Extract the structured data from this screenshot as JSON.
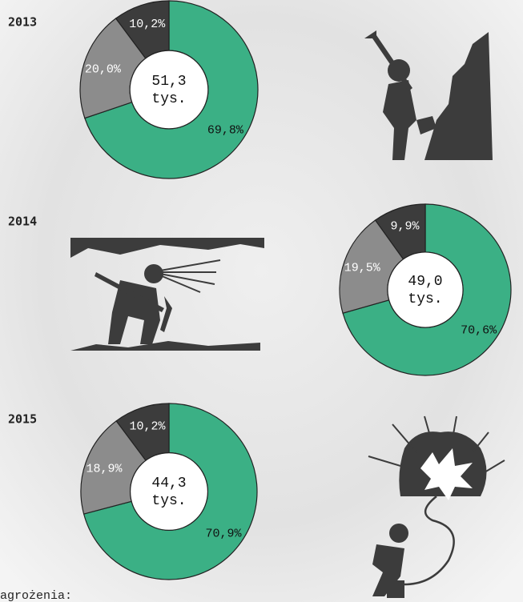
{
  "chart_data": [
    {
      "type": "pie",
      "title": "2013",
      "values": [
        69.8,
        20.0,
        10.2
      ],
      "value_labels": [
        "69,8%",
        "20,0%",
        "10,2%"
      ],
      "colors": [
        "#3bb085",
        "#8c8c8c",
        "#3c3c3c"
      ],
      "center_text": [
        "51,3",
        "tys."
      ]
    },
    {
      "type": "pie",
      "title": "2014",
      "values": [
        70.6,
        19.5,
        9.9
      ],
      "value_labels": [
        "70,6%",
        "19,5%",
        "9,9%"
      ],
      "colors": [
        "#3bb085",
        "#8c8c8c",
        "#3c3c3c"
      ],
      "center_text": [
        "49,0",
        "tys."
      ]
    },
    {
      "type": "pie",
      "title": "2015",
      "values": [
        70.9,
        18.9,
        10.2
      ],
      "value_labels": [
        "70,9%",
        "18,9%",
        "10,2%"
      ],
      "colors": [
        "#3bb085",
        "#8c8c8c",
        "#3c3c3c"
      ],
      "center_text": [
        "44,3",
        "tys."
      ]
    }
  ],
  "footer": "agrożenia:"
}
